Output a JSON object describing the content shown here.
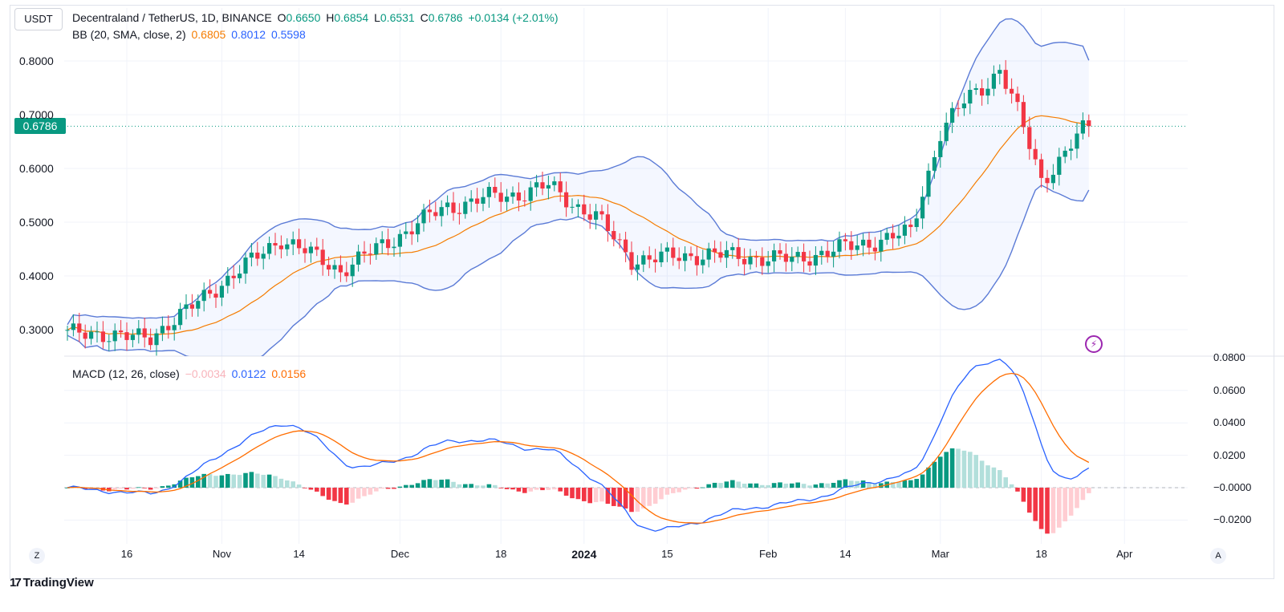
{
  "symbol_button": "USDT",
  "legend": {
    "title": "Decentraland / TetherUS, 1D, BINANCE",
    "o_label": "O",
    "o_value": "0.6650",
    "h_label": "H",
    "h_value": "0.6854",
    "l_label": "L",
    "l_value": "0.6531",
    "c_label": "C",
    "c_value": "0.6786",
    "change": "+0.0134 (+2.01%)",
    "bb_label": "BB (20, SMA, close, 2)",
    "bb_basis": "0.6805",
    "bb_upper": "0.8012",
    "bb_lower": "0.5598",
    "macd_label": "MACD (12, 26, close)",
    "macd_hist": "−0.0034",
    "macd_line": "0.0122",
    "macd_signal": "0.0156"
  },
  "current_price": "0.6786",
  "brand": "TradingView",
  "corner_left": "Z",
  "corner_right": "A",
  "colors": {
    "up": "#089981",
    "down": "#f23645",
    "up_light": "#b2dfdb",
    "down_light": "#ffcdd2",
    "bb_band": "#5b7bd6",
    "bb_basis": "#f57c00",
    "macd": "#2962ff",
    "signal": "#ff6d00"
  },
  "chart_data": [
    {
      "type": "candlestick",
      "title": "Decentraland / TetherUS, 1D, BINANCE",
      "y_ticks": [
        "0.8000",
        "0.7000",
        "0.6000",
        "0.5000",
        "0.4000",
        "0.3000"
      ],
      "x_ticks": [
        "16",
        "Nov",
        "14",
        "Dec",
        "18",
        "2024",
        "15",
        "Feb",
        "14",
        "Mar",
        "18",
        "Apr"
      ],
      "ylim": [
        0.25,
        0.85
      ],
      "key_points": [
        {
          "x": "2023-10-06",
          "close": 0.295
        },
        {
          "x": "2023-10-20",
          "close": 0.285
        },
        {
          "x": "2023-11-11",
          "close": 0.47
        },
        {
          "x": "2023-11-21",
          "close": 0.41
        },
        {
          "x": "2023-12-09",
          "close": 0.53
        },
        {
          "x": "2023-12-26",
          "close": 0.565
        },
        {
          "x": "2024-01-03",
          "close": 0.51
        },
        {
          "x": "2024-01-09",
          "close": 0.43
        },
        {
          "x": "2024-01-22",
          "close": 0.44
        },
        {
          "x": "2024-02-05",
          "close": 0.43
        },
        {
          "x": "2024-02-25",
          "close": 0.48
        },
        {
          "x": "2024-03-01",
          "close": 0.67
        },
        {
          "x": "2024-03-11",
          "close": 0.79
        },
        {
          "x": "2024-03-18",
          "close": 0.58
        },
        {
          "x": "2024-03-26",
          "close": 0.6786
        }
      ],
      "bb_last": {
        "basis": 0.6805,
        "upper": 0.8012,
        "lower": 0.5598
      }
    },
    {
      "type": "line+bar",
      "title": "MACD (12, 26, close)",
      "y_ticks": [
        "0.0800",
        "0.0600",
        "0.0400",
        "0.0200",
        "−0.0000",
        "−0.0200"
      ],
      "ylim": [
        -0.025,
        0.08
      ],
      "last": {
        "histogram": -0.0034,
        "macd": 0.0122,
        "signal": 0.0156
      }
    }
  ]
}
